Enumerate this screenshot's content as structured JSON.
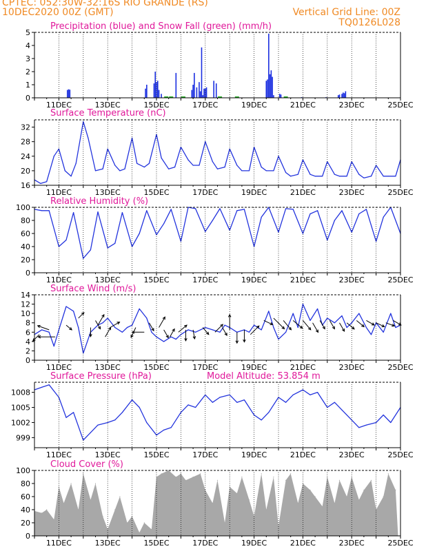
{
  "header": {
    "line1_left": "CPTEC:   052:30W-32:16S  RIO GRANDE (RS)",
    "line2_left": "10DEC2020 00Z (GMT)",
    "line2_right": "Vertical Grid Line: 00Z",
    "line3_right": "TQ0126L028"
  },
  "colors": {
    "header": "#f08a24",
    "panel_title": "#e0189a",
    "line": "#2233dd",
    "precip": "#1a2ee0",
    "snow": "#22aa22",
    "cloud": "#a8a8a8",
    "wind_arrow": "#000000"
  },
  "chart_data": [
    {
      "id": "precip",
      "type": "bar",
      "title": "Precipitation (blue) and Snow Fall (green) (mm/h)",
      "ylim": [
        0,
        5
      ],
      "yticks": [
        "0",
        "1",
        "2",
        "3",
        "4",
        "5"
      ],
      "x_day_range": [
        10,
        25
      ],
      "xticks": [
        "11DEC",
        "13DEC",
        "15DEC",
        "17DEC",
        "19DEC",
        "21DEC",
        "23DEC",
        "25DEC"
      ],
      "precip": [
        [
          11.35,
          0.6
        ],
        [
          11.4,
          0.65
        ],
        [
          11.45,
          0.62
        ],
        [
          14.55,
          0.7
        ],
        [
          14.6,
          1.0
        ],
        [
          14.9,
          1.1
        ],
        [
          14.95,
          2.0
        ],
        [
          15.0,
          1.2
        ],
        [
          15.05,
          1.3
        ],
        [
          15.1,
          0.6
        ],
        [
          15.2,
          0.3
        ],
        [
          15.8,
          1.9
        ],
        [
          16.45,
          0.6
        ],
        [
          16.5,
          1.0
        ],
        [
          16.55,
          1.9
        ],
        [
          16.65,
          0.8
        ],
        [
          16.75,
          1.2
        ],
        [
          16.8,
          0.5
        ],
        [
          16.85,
          3.85
        ],
        [
          16.9,
          0.2
        ],
        [
          16.95,
          0.7
        ],
        [
          17.0,
          0.7
        ],
        [
          17.05,
          0.8
        ],
        [
          17.35,
          1.3
        ],
        [
          17.45,
          1.1
        ],
        [
          19.5,
          1.3
        ],
        [
          19.55,
          1.4
        ],
        [
          19.6,
          4.9
        ],
        [
          19.65,
          1.8
        ],
        [
          19.7,
          2.1
        ],
        [
          19.75,
          1.6
        ],
        [
          19.8,
          0.2
        ],
        [
          20.05,
          0.3
        ],
        [
          20.1,
          0.25
        ],
        [
          20.25,
          0.1
        ],
        [
          20.95,
          0.05
        ],
        [
          21.95,
          0.05
        ],
        [
          22.45,
          0.2
        ],
        [
          22.5,
          0.25
        ],
        [
          22.6,
          0.3
        ],
        [
          22.65,
          0.4
        ],
        [
          22.7,
          0.35
        ],
        [
          22.75,
          0.5
        ]
      ],
      "snow": [
        [
          15.4,
          0.05
        ],
        [
          15.6,
          0.05
        ],
        [
          16.1,
          0.05
        ],
        [
          17.6,
          0.05
        ],
        [
          18.3,
          0.05
        ],
        [
          20.3,
          0.05
        ]
      ]
    },
    {
      "id": "temp",
      "type": "line",
      "title": "Surface Temperature (nC)",
      "ylim": [
        16,
        34
      ],
      "yticks": [
        "16",
        "20",
        "24",
        "28",
        "32"
      ],
      "x_day_range": [
        10,
        25
      ],
      "xticks": [
        "11DEC",
        "13DEC",
        "15DEC",
        "17DEC",
        "19DEC",
        "21DEC",
        "23DEC",
        "25DEC"
      ],
      "x": [
        10.0,
        10.25,
        10.5,
        10.8,
        11.0,
        11.25,
        11.5,
        11.7,
        12.0,
        12.2,
        12.5,
        12.8,
        13.0,
        13.3,
        13.5,
        13.7,
        14.0,
        14.2,
        14.5,
        14.7,
        15.0,
        15.2,
        15.5,
        15.75,
        16.0,
        16.3,
        16.5,
        16.75,
        17.0,
        17.3,
        17.5,
        17.8,
        18.0,
        18.3,
        18.5,
        18.8,
        19.0,
        19.3,
        19.5,
        19.8,
        20.0,
        20.3,
        20.5,
        20.8,
        21.0,
        21.3,
        21.5,
        21.8,
        22.0,
        22.3,
        22.5,
        22.8,
        23.0,
        23.3,
        23.5,
        23.8,
        24.0,
        24.3,
        24.5,
        24.8,
        25.0
      ],
      "y": [
        17.5,
        16.5,
        17.0,
        24.0,
        26.0,
        20.0,
        18.5,
        22.0,
        33.5,
        29.0,
        20.0,
        20.5,
        26.0,
        21.5,
        20.0,
        20.5,
        29.0,
        22.0,
        21.0,
        22.0,
        30.0,
        23.5,
        20.5,
        21.0,
        26.5,
        23.0,
        21.5,
        21.5,
        28.0,
        22.5,
        20.5,
        21.0,
        26.0,
        21.5,
        20.0,
        20.0,
        26.5,
        21.0,
        20.0,
        20.0,
        24.0,
        19.5,
        18.5,
        19.0,
        23.0,
        19.0,
        18.5,
        18.5,
        22.5,
        19.0,
        18.5,
        18.5,
        22.5,
        19.0,
        18.0,
        18.5,
        21.5,
        18.5,
        18.5,
        18.5,
        23.0
      ]
    },
    {
      "id": "rh",
      "type": "line",
      "title": "Relative Humidity (%)",
      "ylim": [
        0,
        100
      ],
      "yticks": [
        "0",
        "20",
        "40",
        "60",
        "80",
        "100"
      ],
      "x_day_range": [
        10,
        25
      ],
      "xticks": [
        "11DEC",
        "13DEC",
        "15DEC",
        "17DEC",
        "19DEC",
        "21DEC",
        "23DEC",
        "25DEC"
      ],
      "x": [
        10.0,
        10.3,
        10.6,
        11.0,
        11.3,
        11.6,
        12.0,
        12.3,
        12.6,
        13.0,
        13.3,
        13.6,
        14.0,
        14.3,
        14.6,
        15.0,
        15.3,
        15.6,
        16.0,
        16.3,
        16.6,
        17.0,
        17.3,
        17.6,
        18.0,
        18.3,
        18.6,
        19.0,
        19.3,
        19.6,
        20.0,
        20.3,
        20.6,
        21.0,
        21.3,
        21.6,
        22.0,
        22.3,
        22.6,
        23.0,
        23.3,
        23.6,
        24.0,
        24.3,
        24.6,
        25.0
      ],
      "y": [
        97.0,
        95.0,
        95.0,
        40.0,
        50.0,
        92.0,
        22.0,
        35.0,
        93.0,
        38.0,
        45.0,
        92.0,
        40.0,
        60.0,
        95.0,
        58.0,
        75.0,
        97.0,
        48.0,
        100.0,
        98.0,
        63.0,
        80.0,
        98.0,
        65.0,
        95.0,
        97.0,
        40.0,
        85.0,
        100.0,
        62.0,
        98.0,
        97.0,
        60.0,
        90.0,
        95.0,
        50.0,
        80.0,
        95.0,
        62.0,
        90.0,
        97.0,
        48.0,
        85.0,
        100.0,
        60.0
      ]
    },
    {
      "id": "wind",
      "type": "line",
      "title": "Surface Wind (m/s)",
      "ylim": [
        0,
        14
      ],
      "yticks": [
        "0",
        "2",
        "4",
        "6",
        "8",
        "10",
        "12",
        "14"
      ],
      "x_day_range": [
        10,
        25
      ],
      "xticks": [
        "11DEC",
        "13DEC",
        "15DEC",
        "17DEC",
        "19DEC",
        "21DEC",
        "23DEC",
        "25DEC"
      ],
      "x": [
        10.0,
        10.3,
        10.6,
        10.8,
        11.0,
        11.3,
        11.6,
        11.8,
        12.0,
        12.3,
        12.6,
        12.8,
        13.0,
        13.3,
        13.6,
        13.8,
        14.0,
        14.3,
        14.6,
        14.8,
        15.0,
        15.3,
        15.6,
        15.8,
        16.0,
        16.3,
        16.6,
        16.8,
        17.0,
        17.3,
        17.6,
        17.8,
        18.0,
        18.3,
        18.6,
        18.8,
        19.0,
        19.3,
        19.6,
        19.8,
        20.0,
        20.3,
        20.6,
        20.8,
        21.0,
        21.3,
        21.6,
        21.8,
        22.0,
        22.3,
        22.6,
        22.8,
        23.0,
        23.3,
        23.6,
        23.8,
        24.0,
        24.3,
        24.6,
        24.8,
        25.0
      ],
      "y": [
        5.5,
        6.5,
        6.0,
        3.0,
        6.5,
        11.5,
        10.5,
        7.0,
        1.5,
        6.0,
        7.5,
        8.0,
        9.0,
        7.0,
        6.0,
        7.0,
        7.5,
        11.0,
        9.0,
        6.0,
        5.0,
        4.0,
        5.0,
        4.5,
        5.5,
        6.5,
        6.0,
        6.5,
        7.0,
        6.5,
        6.0,
        7.5,
        7.0,
        6.0,
        6.5,
        6.0,
        7.5,
        6.5,
        10.5,
        7.0,
        4.5,
        6.0,
        10.0,
        7.0,
        12.0,
        8.5,
        11.0,
        7.5,
        9.0,
        8.0,
        9.5,
        7.0,
        8.0,
        10.0,
        7.0,
        5.5,
        8.0,
        6.0,
        10.0,
        7.0,
        7.5
      ],
      "arrows": [
        [
          10.2,
          5.5,
          225,
          1.5
        ],
        [
          10.6,
          6.5,
          160,
          2.0
        ],
        [
          10.85,
          5.0,
          180,
          2.8
        ],
        [
          11.3,
          7.5,
          320,
          1.2
        ],
        [
          11.8,
          9.0,
          45,
          1.3
        ],
        [
          12.3,
          7.0,
          270,
          1.5
        ],
        [
          12.5,
          8.5,
          300,
          1.6
        ],
        [
          12.6,
          7.5,
          60,
          2.0
        ],
        [
          12.9,
          5.0,
          60,
          1.8
        ],
        [
          13.1,
          7.0,
          30,
          1.8
        ],
        [
          14.15,
          7.0,
          245,
          1.8
        ],
        [
          14.5,
          6.0,
          180,
          2.0
        ],
        [
          14.7,
          8.0,
          300,
          1.5
        ],
        [
          15.1,
          7.0,
          60,
          2.0
        ],
        [
          15.3,
          6.5,
          300,
          1.5
        ],
        [
          15.55,
          5.0,
          60,
          1.5
        ],
        [
          15.9,
          6.0,
          40,
          1.8
        ],
        [
          16.2,
          6.5,
          270,
          1.8
        ],
        [
          16.5,
          6.5,
          280,
          1.5
        ],
        [
          16.9,
          7.0,
          310,
          1.5
        ],
        [
          17.4,
          6.0,
          45,
          1.8
        ],
        [
          17.7,
          7.0,
          300,
          1.5
        ],
        [
          18.0,
          6.5,
          90,
          2.5
        ],
        [
          18.3,
          6.0,
          270,
          1.8
        ],
        [
          18.6,
          6.5,
          270,
          2.0
        ],
        [
          18.85,
          5.5,
          45,
          2.0
        ],
        [
          19.4,
          8.5,
          335,
          1.6
        ],
        [
          19.8,
          9.0,
          315,
          2.5
        ],
        [
          20.2,
          8.5,
          310,
          2.0
        ],
        [
          20.6,
          8.5,
          320,
          2.0
        ],
        [
          21.0,
          8.5,
          310,
          2.0
        ],
        [
          21.4,
          8.0,
          300,
          1.8
        ],
        [
          21.7,
          8.5,
          300,
          1.6
        ],
        [
          22.1,
          8.5,
          300,
          1.6
        ],
        [
          22.5,
          8.0,
          300,
          1.6
        ],
        [
          22.8,
          8.0,
          320,
          1.6
        ],
        [
          23.2,
          8.5,
          320,
          1.6
        ],
        [
          23.6,
          8.5,
          330,
          1.5
        ],
        [
          24.0,
          8.0,
          335,
          1.5
        ],
        [
          24.4,
          8.0,
          340,
          1.5
        ],
        [
          24.7,
          8.5,
          330,
          1.5
        ]
      ]
    },
    {
      "id": "pressure",
      "type": "line",
      "title": "Surface Pressure (hPa)",
      "annotation": "Model Altitude: 53.854  m",
      "ylim": [
        997,
        1010
      ],
      "yticks": [
        "999",
        "1002",
        "1005",
        "1008"
      ],
      "ytick_values": [
        999,
        1002,
        1005,
        1008
      ],
      "x_day_range": [
        10,
        25
      ],
      "xticks": [
        "11DEC",
        "13DEC",
        "15DEC",
        "17DEC",
        "19DEC",
        "21DEC",
        "23DEC",
        "25DEC"
      ],
      "x": [
        10.0,
        10.3,
        10.6,
        11.0,
        11.3,
        11.6,
        12.0,
        12.3,
        12.6,
        13.0,
        13.3,
        13.6,
        14.0,
        14.3,
        14.6,
        15.0,
        15.3,
        15.6,
        16.0,
        16.3,
        16.6,
        17.0,
        17.3,
        17.6,
        18.0,
        18.3,
        18.6,
        19.0,
        19.3,
        19.6,
        20.0,
        20.3,
        20.6,
        21.0,
        21.3,
        21.6,
        22.0,
        22.3,
        22.6,
        23.0,
        23.3,
        23.6,
        24.0,
        24.3,
        24.6,
        25.0
      ],
      "y": [
        1008.5,
        1009.0,
        1009.5,
        1007.0,
        1003.0,
        1004.0,
        998.5,
        1000.0,
        1001.5,
        1002.0,
        1002.5,
        1004.0,
        1006.5,
        1005.0,
        1002.0,
        999.5,
        1000.5,
        1001.0,
        1004.0,
        1005.5,
        1005.0,
        1007.5,
        1006.0,
        1007.0,
        1007.5,
        1006.0,
        1006.5,
        1003.5,
        1002.5,
        1004.0,
        1007.0,
        1006.0,
        1007.5,
        1008.5,
        1007.5,
        1008.0,
        1005.0,
        1006.0,
        1004.5,
        1002.5,
        1001.0,
        1001.5,
        1002.0,
        1003.5,
        1002.0,
        1005.0
      ]
    },
    {
      "id": "cloud",
      "type": "area",
      "title": "Cloud Cover (%)",
      "ylim": [
        0,
        100
      ],
      "yticks": [
        "0",
        "20",
        "40",
        "60",
        "80",
        "100"
      ],
      "x_day_range": [
        10,
        25
      ],
      "xticks": [
        "11DEC",
        "13DEC",
        "15DEC",
        "17DEC",
        "19DEC",
        "21DEC",
        "23DEC",
        "25DEC"
      ],
      "x": [
        10.0,
        10.3,
        10.5,
        10.8,
        11.0,
        11.2,
        11.5,
        11.8,
        12.0,
        12.3,
        12.5,
        12.8,
        13.0,
        13.3,
        13.5,
        13.8,
        14.0,
        14.3,
        14.5,
        14.8,
        15.0,
        15.2,
        15.5,
        15.8,
        16.0,
        16.2,
        16.5,
        16.8,
        17.0,
        17.3,
        17.5,
        17.8,
        18.0,
        18.3,
        18.5,
        18.8,
        19.0,
        19.3,
        19.5,
        19.8,
        20.0,
        20.3,
        20.5,
        20.8,
        21.0,
        21.3,
        21.5,
        21.8,
        22.0,
        22.3,
        22.5,
        22.8,
        23.0,
        23.3,
        23.5,
        23.8,
        24.0,
        24.3,
        24.5,
        24.8,
        24.9,
        25.0
      ],
      "y": [
        38.0,
        35.0,
        40.0,
        25.0,
        75.0,
        50.0,
        80.0,
        40.0,
        95.0,
        55.0,
        80.0,
        30.0,
        10.0,
        40.0,
        60.0,
        20.0,
        30.0,
        5.0,
        20.0,
        10.0,
        90.0,
        95.0,
        100.0,
        90.0,
        95.0,
        85.0,
        90.0,
        95.0,
        70.0,
        50.0,
        85.0,
        20.0,
        75.0,
        65.0,
        90.0,
        55.0,
        30.0,
        95.0,
        40.0,
        90.0,
        15.0,
        85.0,
        95.0,
        50.0,
        80.0,
        70.0,
        60.0,
        45.0,
        90.0,
        50.0,
        85.0,
        60.0,
        90.0,
        55.0,
        70.0,
        85.0,
        40.0,
        60.0,
        95.0,
        70.0,
        0.0,
        0.0
      ]
    }
  ]
}
